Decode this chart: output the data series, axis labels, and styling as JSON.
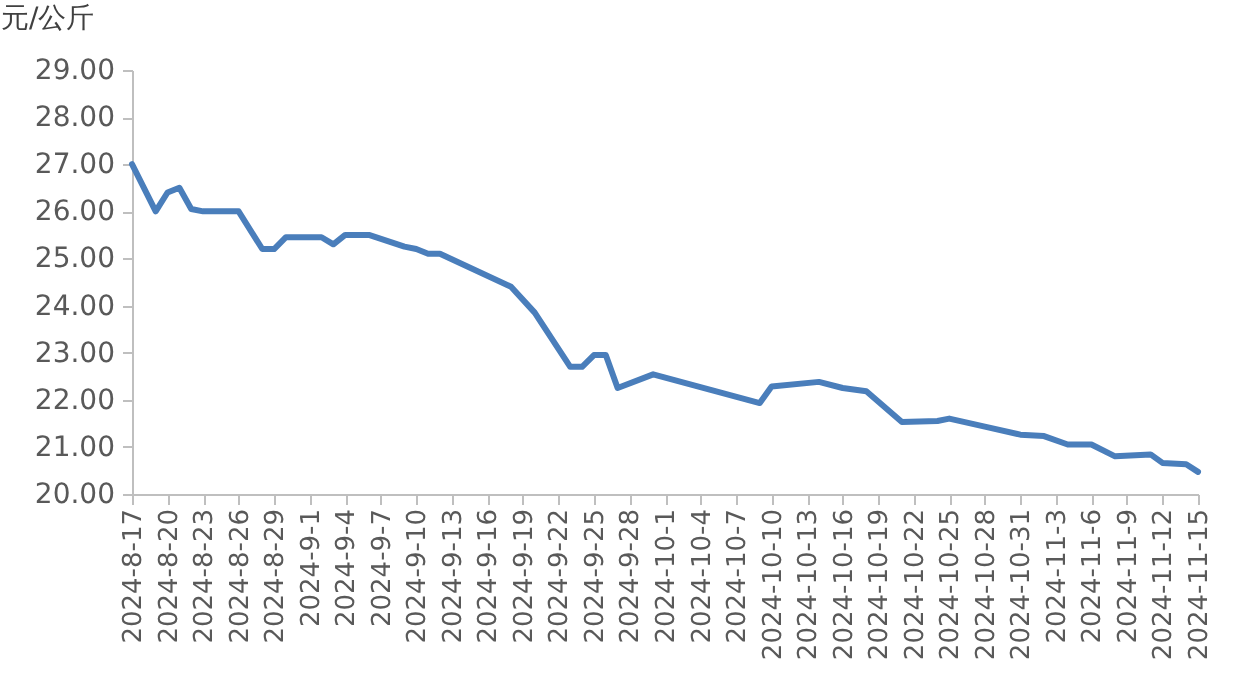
{
  "chart_data": {
    "type": "line",
    "ylabel": "元/公斤",
    "x": [
      "2024-08-17",
      "2024-08-19",
      "2024-08-20",
      "2024-08-21",
      "2024-08-22",
      "2024-08-23",
      "2024-08-26",
      "2024-08-28",
      "2024-08-29",
      "2024-08-30",
      "2024-09-02",
      "2024-09-03",
      "2024-09-04",
      "2024-09-06",
      "2024-09-09",
      "2024-09-10",
      "2024-09-11",
      "2024-09-12",
      "2024-09-18",
      "2024-09-20",
      "2024-09-23",
      "2024-09-24",
      "2024-09-25",
      "2024-09-26",
      "2024-09-27",
      "2024-09-30",
      "2024-10-09",
      "2024-10-10",
      "2024-10-14",
      "2024-10-16",
      "2024-10-18",
      "2024-10-21",
      "2024-10-24",
      "2024-10-25",
      "2024-10-28",
      "2024-10-31",
      "2024-11-02",
      "2024-11-04",
      "2024-11-06",
      "2024-11-08",
      "2024-11-11",
      "2024-11-12",
      "2024-11-14",
      "2024-11-15"
    ],
    "series": [
      {
        "color": "#4a7ebb",
        "values": [
          27.0,
          26.0,
          26.4,
          26.5,
          26.05,
          26.0,
          26.0,
          25.2,
          25.2,
          25.45,
          25.45,
          25.3,
          25.5,
          25.5,
          25.25,
          25.2,
          25.1,
          25.1,
          24.4,
          23.85,
          22.7,
          22.7,
          22.95,
          22.95,
          22.25,
          22.54,
          21.93,
          22.28,
          22.38,
          22.25,
          22.18,
          21.53,
          21.55,
          21.6,
          21.43,
          21.26,
          21.23,
          21.05,
          21.05,
          20.8,
          20.84,
          20.66,
          20.63,
          20.47
        ]
      }
    ],
    "xlim": [
      "2024-08-17",
      "2024-11-15"
    ],
    "xticks": [
      {
        "value": "2024-08-17",
        "label": "2024-8-17"
      },
      {
        "value": "2024-08-20",
        "label": "2024-8-20"
      },
      {
        "value": "2024-08-23",
        "label": "2024-8-23"
      },
      {
        "value": "2024-08-26",
        "label": "2024-8-26"
      },
      {
        "value": "2024-08-29",
        "label": "2024-8-29"
      },
      {
        "value": "2024-09-01",
        "label": "2024-9-1"
      },
      {
        "value": "2024-09-04",
        "label": "2024-9-4"
      },
      {
        "value": "2024-09-07",
        "label": "2024-9-7"
      },
      {
        "value": "2024-09-10",
        "label": "2024-9-10"
      },
      {
        "value": "2024-09-13",
        "label": "2024-9-13"
      },
      {
        "value": "2024-09-16",
        "label": "2024-9-16"
      },
      {
        "value": "2024-09-19",
        "label": "2024-9-19"
      },
      {
        "value": "2024-09-22",
        "label": "2024-9-22"
      },
      {
        "value": "2024-09-25",
        "label": "2024-9-25"
      },
      {
        "value": "2024-09-28",
        "label": "2024-9-28"
      },
      {
        "value": "2024-10-01",
        "label": "2024-10-1"
      },
      {
        "value": "2024-10-04",
        "label": "2024-10-4"
      },
      {
        "value": "2024-10-07",
        "label": "2024-10-7"
      },
      {
        "value": "2024-10-10",
        "label": "2024-10-10"
      },
      {
        "value": "2024-10-13",
        "label": "2024-10-13"
      },
      {
        "value": "2024-10-16",
        "label": "2024-10-16"
      },
      {
        "value": "2024-10-19",
        "label": "2024-10-19"
      },
      {
        "value": "2024-10-22",
        "label": "2024-10-22"
      },
      {
        "value": "2024-10-25",
        "label": "2024-10-25"
      },
      {
        "value": "2024-10-28",
        "label": "2024-10-28"
      },
      {
        "value": "2024-10-31",
        "label": "2024-10-31"
      },
      {
        "value": "2024-11-03",
        "label": "2024-11-3"
      },
      {
        "value": "2024-11-06",
        "label": "2024-11-6"
      },
      {
        "value": "2024-11-09",
        "label": "2024-11-9"
      },
      {
        "value": "2024-11-12",
        "label": "2024-11-12"
      },
      {
        "value": "2024-11-15",
        "label": "2024-11-15"
      }
    ],
    "ylim": [
      20,
      29
    ],
    "yticks": [
      {
        "value": 20,
        "label": "20.00"
      },
      {
        "value": 21,
        "label": "21.00"
      },
      {
        "value": 22,
        "label": "22.00"
      },
      {
        "value": 23,
        "label": "23.00"
      },
      {
        "value": 24,
        "label": "24.00"
      },
      {
        "value": 25,
        "label": "25.00"
      },
      {
        "value": 26,
        "label": "26.00"
      },
      {
        "value": 27,
        "label": "27.00"
      },
      {
        "value": 28,
        "label": "28.00"
      },
      {
        "value": 29,
        "label": "29.00"
      }
    ],
    "grid": false,
    "legend": false,
    "marker": "none",
    "line_style": "solid"
  }
}
